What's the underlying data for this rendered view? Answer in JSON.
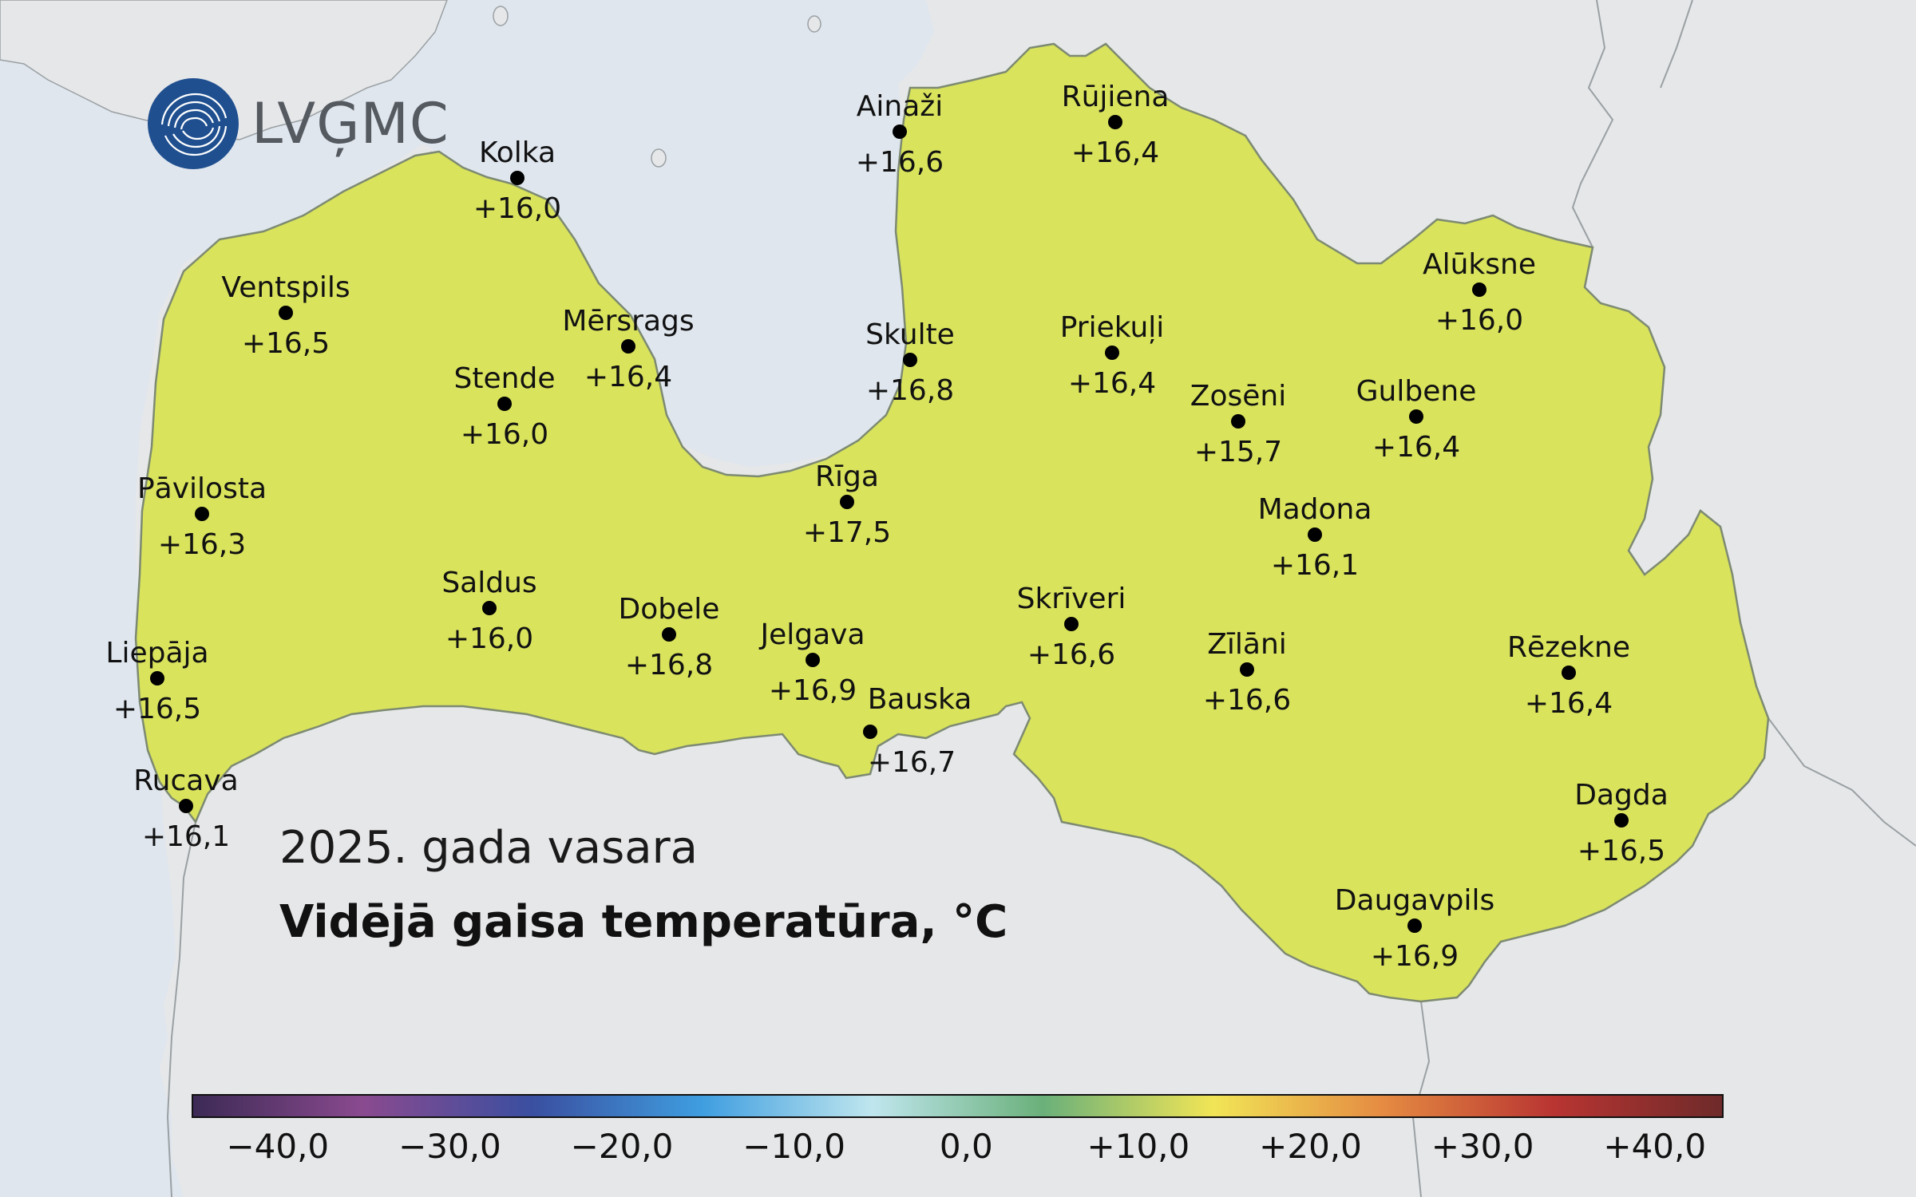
{
  "logo": {
    "text": "LVĢMC",
    "icon": "lvgmc-wave-icon"
  },
  "title": {
    "line1": "2025. gada vasara",
    "line2": "Vidējā gaisa temperatūra, °C"
  },
  "colors": {
    "sea": "#dfe6ee",
    "land": "#e6e7e9",
    "latvia": "#d7e35c",
    "border": "#8f9593"
  },
  "stations": [
    {
      "name": "Kolka",
      "value": "+16,0"
    },
    {
      "name": "Ventspils",
      "value": "+16,5"
    },
    {
      "name": "Mērsrags",
      "value": "+16,4"
    },
    {
      "name": "Stende",
      "value": "+16,0"
    },
    {
      "name": "Pāvilosta",
      "value": "+16,3"
    },
    {
      "name": "Saldus",
      "value": "+16,0"
    },
    {
      "name": "Dobele",
      "value": "+16,8"
    },
    {
      "name": "Liepāja",
      "value": "+16,5"
    },
    {
      "name": "Rucava",
      "value": "+16,1"
    },
    {
      "name": "Jelgava",
      "value": "+16,9"
    },
    {
      "name": "Rīga",
      "value": "+17,5"
    },
    {
      "name": "Skulte",
      "value": "+16,8"
    },
    {
      "name": "Ainaži",
      "value": "+16,6"
    },
    {
      "name": "Bauska",
      "value": "+16,7"
    },
    {
      "name": "Rūjiena",
      "value": "+16,4"
    },
    {
      "name": "Priekuļi",
      "value": "+16,4"
    },
    {
      "name": "Zosēni",
      "value": "+15,7"
    },
    {
      "name": "Alūksne",
      "value": "+16,0"
    },
    {
      "name": "Gulbene",
      "value": "+16,4"
    },
    {
      "name": "Madona",
      "value": "+16,1"
    },
    {
      "name": "Skrīveri",
      "value": "+16,6"
    },
    {
      "name": "Zīlāni",
      "value": "+16,6"
    },
    {
      "name": "Rēzekne",
      "value": "+16,4"
    },
    {
      "name": "Dagda",
      "value": "+16,5"
    },
    {
      "name": "Daugavpils",
      "value": "+16,9"
    }
  ],
  "colorbar": {
    "min": -45,
    "max": 44,
    "ticks": [
      "−40,0",
      "−30,0",
      "−20,0",
      "−10,0",
      "0,0",
      "+10,0",
      "+20,0",
      "+30,0",
      "+40,0"
    ],
    "tick_values": [
      -40,
      -30,
      -20,
      -10,
      0,
      10,
      20,
      30,
      40
    ],
    "colors": [
      "#3c2a55",
      "#8a4a8f",
      "#3a4fa0",
      "#3f9ee0",
      "#bfe6ee",
      "#6ab07a",
      "#f1e556",
      "#e58b42",
      "#b93532",
      "#6e2a2a"
    ]
  }
}
